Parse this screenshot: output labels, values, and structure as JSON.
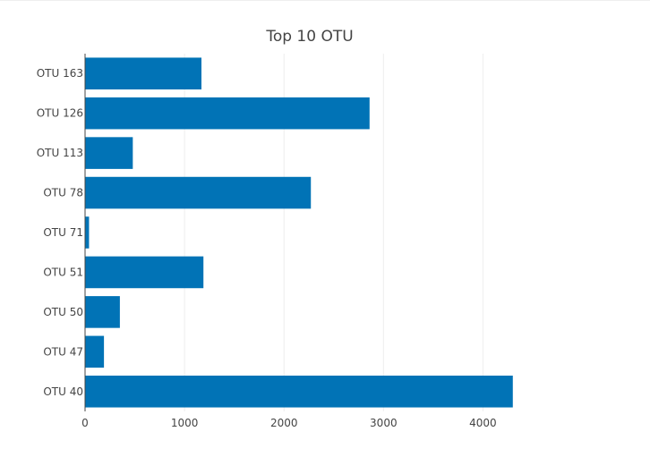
{
  "chart_data": {
    "type": "bar",
    "orientation": "horizontal",
    "title": "Top 10 OTU",
    "xlabel": "",
    "ylabel": "",
    "categories": [
      "OTU 163",
      "OTU 126",
      "OTU 113",
      "OTU 78",
      "OTU 71",
      "OTU 51",
      "OTU 50",
      "OTU 47",
      "OTU 40"
    ],
    "values": [
      1170,
      2860,
      480,
      2270,
      40,
      1190,
      350,
      190,
      4300
    ],
    "xlim": [
      0,
      4500
    ],
    "xticks": [
      0,
      1000,
      2000,
      3000,
      4000
    ],
    "xtick_labels": [
      "0",
      "1000",
      "2000",
      "3000",
      "4000"
    ],
    "grid": "vertical",
    "legend": "none",
    "bar_color": "#0173b6",
    "grid_color": "#eeeeee",
    "axis_color": "#444444"
  }
}
